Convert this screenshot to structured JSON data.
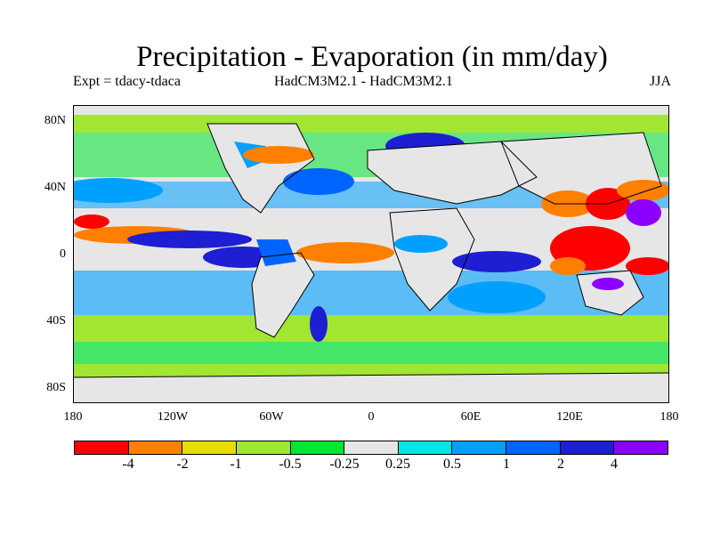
{
  "title": "Precipitation - Evaporation (in mm/day)",
  "subtitle_left": "Expt = tdacy-tdaca",
  "subtitle_center": "HadCM3M2.1 - HadCM3M2.1",
  "subtitle_right": "JJA",
  "y_axis_labels": [
    "80N",
    "40N",
    "0",
    "40S",
    "80S"
  ],
  "x_axis_labels": [
    "180",
    "120W",
    "60W",
    "0",
    "60E",
    "120E",
    "180"
  ],
  "colorbar": {
    "colors": [
      "#ff0000",
      "#ff8000",
      "#e6dc00",
      "#a0e632",
      "#00e632",
      "#e6e6e6",
      "#00e6e6",
      "#00a0ff",
      "#0064ff",
      "#1e1ed2",
      "#8c00ff"
    ],
    "labels": [
      "-4",
      "-2",
      "-1",
      "-0.5",
      "-0.25",
      "0.25",
      "0.5",
      "1",
      "2",
      "4"
    ]
  }
}
